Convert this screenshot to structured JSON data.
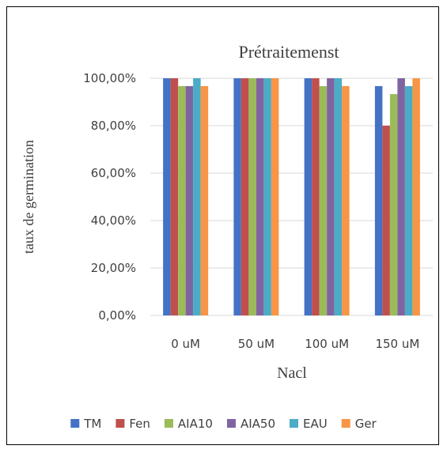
{
  "chart_data": {
    "type": "bar",
    "title": "Prétraitemenst",
    "xlabel": "Nacl",
    "ylabel": "taux de germination",
    "categories": [
      "0 uM",
      "50 uM",
      "100 uM",
      "150 uM"
    ],
    "ylim": [
      0,
      100
    ],
    "yticks": [
      "0,00%",
      "20,00%",
      "40,00%",
      "60,00%",
      "80,00%",
      "100,00%"
    ],
    "grid": true,
    "legend_position": "bottom",
    "series": [
      {
        "name": "TM",
        "color": "#4472C4",
        "values": [
          100,
          100,
          100,
          96.7
        ]
      },
      {
        "name": "Fen",
        "color": "#C0504D",
        "values": [
          100,
          100,
          100,
          80
        ]
      },
      {
        "name": "AIA10",
        "color": "#9BBB59",
        "values": [
          96.7,
          100,
          96.7,
          93.3
        ]
      },
      {
        "name": "AIA50",
        "color": "#8064A2",
        "values": [
          96.7,
          100,
          100,
          100
        ]
      },
      {
        "name": "EAU",
        "color": "#4BACC6",
        "values": [
          100,
          100,
          100,
          96.7
        ]
      },
      {
        "name": "Ger",
        "color": "#F79646",
        "values": [
          96.7,
          100,
          96.7,
          100
        ]
      }
    ]
  }
}
